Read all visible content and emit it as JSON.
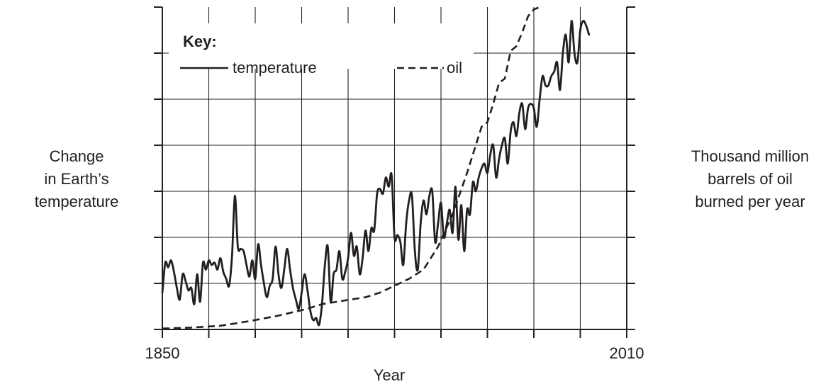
{
  "chart_data": {
    "type": "line",
    "title": "",
    "xlabel": "Year",
    "ylabel_left": [
      "Change",
      "in Earth’s",
      "temperature"
    ],
    "ylabel_right": [
      "Thousand million",
      "barrels of oil",
      "burned per year"
    ],
    "x_tick_labels": [
      {
        "year": 1850,
        "label": "1850"
      },
      {
        "year": 2010,
        "label": "2010"
      }
    ],
    "xlim": [
      1850,
      2010
    ],
    "ylim": [
      0,
      7
    ],
    "grid": true,
    "legend": {
      "title": "Key:",
      "placement": "top-left",
      "entries": [
        {
          "label": "temperature",
          "style": "solid"
        },
        {
          "label": "oil",
          "style": "dashed"
        }
      ]
    },
    "series": [
      {
        "name": "temperature",
        "style": "solid",
        "points": [
          [
            1850,
            0.8
          ],
          [
            1851,
            1.45
          ],
          [
            1852,
            1.35
          ],
          [
            1853,
            1.5
          ],
          [
            1854,
            1.25
          ],
          [
            1855,
            0.9
          ],
          [
            1856,
            0.65
          ],
          [
            1857,
            1.2
          ],
          [
            1858,
            1.05
          ],
          [
            1859,
            0.85
          ],
          [
            1860,
            0.9
          ],
          [
            1861,
            0.55
          ],
          [
            1862,
            1.2
          ],
          [
            1863,
            0.6
          ],
          [
            1864,
            1.45
          ],
          [
            1865,
            1.3
          ],
          [
            1866,
            1.5
          ],
          [
            1867,
            1.4
          ],
          [
            1868,
            1.45
          ],
          [
            1869,
            1.3
          ],
          [
            1870,
            1.55
          ],
          [
            1871,
            1.25
          ],
          [
            1872,
            1.1
          ],
          [
            1873,
            0.95
          ],
          [
            1874,
            1.6
          ],
          [
            1875,
            2.9
          ],
          [
            1876,
            1.8
          ],
          [
            1877,
            1.75
          ],
          [
            1878,
            1.7
          ],
          [
            1879,
            1.4
          ],
          [
            1880,
            1.15
          ],
          [
            1881,
            1.5
          ],
          [
            1882,
            1.1
          ],
          [
            1883,
            1.85
          ],
          [
            1884,
            1.4
          ],
          [
            1885,
            1.0
          ],
          [
            1886,
            0.7
          ],
          [
            1887,
            0.95
          ],
          [
            1888,
            1.1
          ],
          [
            1889,
            1.8
          ],
          [
            1890,
            1.2
          ],
          [
            1891,
            0.9
          ],
          [
            1892,
            1.3
          ],
          [
            1893,
            1.75
          ],
          [
            1894,
            1.3
          ],
          [
            1895,
            0.9
          ],
          [
            1896,
            0.65
          ],
          [
            1897,
            0.45
          ],
          [
            1898,
            0.8
          ],
          [
            1899,
            1.2
          ],
          [
            1900,
            0.85
          ],
          [
            1901,
            0.4
          ],
          [
            1902,
            0.2
          ],
          [
            1903,
            0.25
          ],
          [
            1904,
            0.1
          ],
          [
            1905,
            0.55
          ],
          [
            1906,
            1.4
          ],
          [
            1907,
            1.8
          ],
          [
            1908,
            0.6
          ],
          [
            1909,
            1.2
          ],
          [
            1910,
            1.3
          ],
          [
            1911,
            1.7
          ],
          [
            1912,
            1.1
          ],
          [
            1913,
            1.25
          ],
          [
            1914,
            1.55
          ],
          [
            1915,
            2.1
          ],
          [
            1916,
            1.6
          ],
          [
            1917,
            1.8
          ],
          [
            1918,
            1.2
          ],
          [
            1919,
            1.55
          ],
          [
            1920,
            2.15
          ],
          [
            1921,
            1.7
          ],
          [
            1922,
            2.2
          ],
          [
            1923,
            2.15
          ],
          [
            1924,
            2.95
          ],
          [
            1925,
            3.05
          ],
          [
            1926,
            2.95
          ],
          [
            1927,
            3.3
          ],
          [
            1928,
            3.1
          ],
          [
            1929,
            3.35
          ],
          [
            1930,
            2.0
          ],
          [
            1931,
            2.05
          ],
          [
            1932,
            1.9
          ],
          [
            1933,
            1.4
          ],
          [
            1934,
            2.3
          ],
          [
            1935,
            2.8
          ],
          [
            1936,
            2.9
          ],
          [
            1937,
            1.7
          ],
          [
            1938,
            1.3
          ],
          [
            1939,
            2.3
          ],
          [
            1940,
            2.8
          ],
          [
            1941,
            2.5
          ],
          [
            1942,
            2.9
          ],
          [
            1943,
            3.0
          ],
          [
            1944,
            1.9
          ],
          [
            1945,
            2.3
          ],
          [
            1946,
            2.75
          ],
          [
            1947,
            2.0
          ],
          [
            1948,
            2.3
          ],
          [
            1949,
            2.6
          ],
          [
            1950,
            2.1
          ],
          [
            1951,
            3.1
          ],
          [
            1952,
            1.95
          ],
          [
            1953,
            2.7
          ],
          [
            1954,
            1.7
          ],
          [
            1955,
            2.6
          ],
          [
            1956,
            2.5
          ],
          [
            1957,
            3.2
          ],
          [
            1958,
            3.0
          ],
          [
            1959,
            3.3
          ],
          [
            1960,
            3.5
          ],
          [
            1961,
            3.6
          ],
          [
            1962,
            3.4
          ],
          [
            1963,
            3.8
          ],
          [
            1964,
            4.0
          ],
          [
            1965,
            3.3
          ],
          [
            1966,
            3.7
          ],
          [
            1967,
            4.0
          ],
          [
            1968,
            4.15
          ],
          [
            1969,
            3.6
          ],
          [
            1970,
            4.3
          ],
          [
            1971,
            4.5
          ],
          [
            1972,
            4.2
          ],
          [
            1973,
            4.7
          ],
          [
            1974,
            4.9
          ],
          [
            1975,
            4.35
          ],
          [
            1976,
            4.8
          ],
          [
            1977,
            4.9
          ],
          [
            1978,
            4.8
          ],
          [
            1979,
            4.4
          ],
          [
            1980,
            5.0
          ],
          [
            1981,
            5.5
          ],
          [
            1982,
            5.3
          ],
          [
            1983,
            5.3
          ],
          [
            1984,
            5.5
          ],
          [
            1985,
            5.6
          ],
          [
            1986,
            5.8
          ],
          [
            1987,
            5.2
          ],
          [
            1988,
            6.0
          ],
          [
            1989,
            6.4
          ],
          [
            1990,
            5.8
          ],
          [
            1991,
            6.7
          ],
          [
            1992,
            6.0
          ],
          [
            1993,
            5.8
          ],
          [
            1994,
            6.5
          ],
          [
            1995,
            6.7
          ],
          [
            1996,
            6.6
          ],
          [
            1997,
            6.4
          ]
        ]
      },
      {
        "name": "oil",
        "style": "dashed",
        "points": [
          [
            1850,
            0.02
          ],
          [
            1860,
            0.04
          ],
          [
            1870,
            0.08
          ],
          [
            1880,
            0.18
          ],
          [
            1890,
            0.3
          ],
          [
            1900,
            0.45
          ],
          [
            1905,
            0.55
          ],
          [
            1910,
            0.6
          ],
          [
            1920,
            0.7
          ],
          [
            1925,
            0.8
          ],
          [
            1930,
            0.95
          ],
          [
            1935,
            1.1
          ],
          [
            1940,
            1.3
          ],
          [
            1945,
            1.8
          ],
          [
            1950,
            2.5
          ],
          [
            1955,
            3.4
          ],
          [
            1960,
            4.4
          ],
          [
            1962,
            4.5
          ],
          [
            1964,
            4.9
          ],
          [
            1966,
            5.35
          ],
          [
            1968,
            5.45
          ],
          [
            1970,
            6.05
          ],
          [
            1972,
            6.15
          ],
          [
            1974,
            6.45
          ],
          [
            1976,
            6.8
          ],
          [
            1978,
            6.95
          ],
          [
            1980,
            7.0
          ]
        ]
      }
    ]
  }
}
